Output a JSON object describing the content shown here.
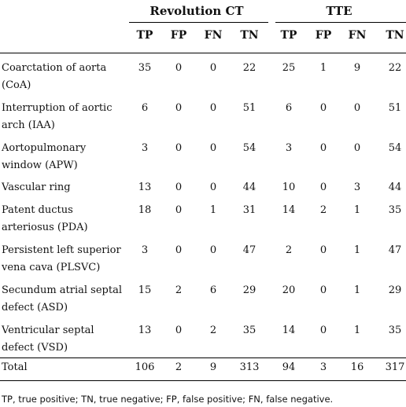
{
  "groups": [
    "Revolution CT",
    "TTE"
  ],
  "columns": [
    "TP",
    "FP",
    "FN",
    "TN",
    "TP",
    "FP",
    "FN",
    "TN"
  ],
  "rows": [
    {
      "label_1": "Coarctation of aorta",
      "label_2": "(CoA)",
      "values": [
        "35",
        "0",
        "0",
        "22",
        "25",
        "1",
        "9",
        "22"
      ]
    },
    {
      "label_1": "Interruption of aortic",
      "label_2": "arch (IAA)",
      "values": [
        "6",
        "0",
        "0",
        "51",
        "6",
        "0",
        "0",
        "51"
      ]
    },
    {
      "label_1": "Aortopulmonary",
      "label_2": "window (APW)",
      "values": [
        "3",
        "0",
        "0",
        "54",
        "3",
        "0",
        "0",
        "54"
      ]
    },
    {
      "label_1": "Vascular ring",
      "label_2": "",
      "values": [
        "13",
        "0",
        "0",
        "44",
        "10",
        "0",
        "3",
        "44"
      ]
    },
    {
      "label_1": "Patent ductus",
      "label_2": "arteriosus (PDA)",
      "values": [
        "18",
        "0",
        "1",
        "31",
        "14",
        "2",
        "1",
        "35"
      ]
    },
    {
      "label_1": "Persistent left superior",
      "label_2": "vena cava (PLSVC)",
      "values": [
        "3",
        "0",
        "0",
        "47",
        "2",
        "0",
        "1",
        "47"
      ]
    },
    {
      "label_1": "Secundum atrial septal",
      "label_2": "defect (ASD)",
      "values": [
        "15",
        "2",
        "6",
        "29",
        "20",
        "0",
        "1",
        "29"
      ]
    },
    {
      "label_1": "Ventricular septal",
      "label_2": "defect (VSD)",
      "values": [
        "13",
        "0",
        "2",
        "35",
        "14",
        "0",
        "1",
        "35"
      ]
    },
    {
      "label_1": "Total",
      "label_2": "",
      "values": [
        "106",
        "2",
        "9",
        "313",
        "94",
        "3",
        "16",
        "317"
      ]
    }
  ],
  "footnote": "TP, true positive; TN, true negative; FP, false positive; FN, false negative."
}
